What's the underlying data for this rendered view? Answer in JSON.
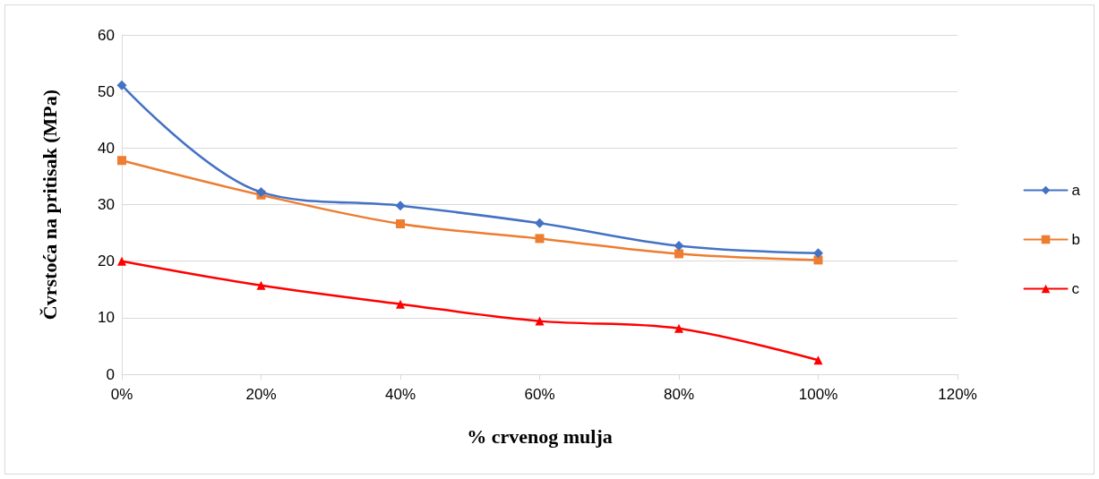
{
  "chart_data": {
    "type": "line",
    "xlabel": "% crvenog mulja",
    "ylabel": "Čvrstoća na pritisak (MPa)",
    "x": [
      0,
      0.2,
      0.4,
      0.6,
      0.8,
      1.0
    ],
    "series": [
      {
        "name": "a",
        "color": "#4472c4",
        "marker": "diamond",
        "values": [
          51.1,
          32.2,
          29.8,
          26.7,
          22.7,
          21.4
        ]
      },
      {
        "name": "b",
        "color": "#ed7d31",
        "marker": "square",
        "values": [
          37.8,
          31.7,
          26.6,
          24.0,
          21.3,
          20.2
        ]
      },
      {
        "name": "c",
        "color": "#ff0000",
        "marker": "triangle",
        "values": [
          20.0,
          15.7,
          12.4,
          9.4,
          8.1,
          2.5
        ]
      }
    ],
    "xlim": [
      0,
      1.2
    ],
    "xticks": [
      {
        "value": 0,
        "label": "0%"
      },
      {
        "value": 0.2,
        "label": "20%"
      },
      {
        "value": 0.4,
        "label": "40%"
      },
      {
        "value": 0.6,
        "label": "60%"
      },
      {
        "value": 0.8,
        "label": "80%"
      },
      {
        "value": 1.0,
        "label": "100%"
      },
      {
        "value": 1.2,
        "label": "120%"
      }
    ],
    "ylim": [
      0,
      60
    ],
    "yticks": [
      0,
      10,
      20,
      30,
      40,
      50,
      60
    ],
    "grid": "y",
    "legend": "right",
    "line_style": "solid"
  }
}
